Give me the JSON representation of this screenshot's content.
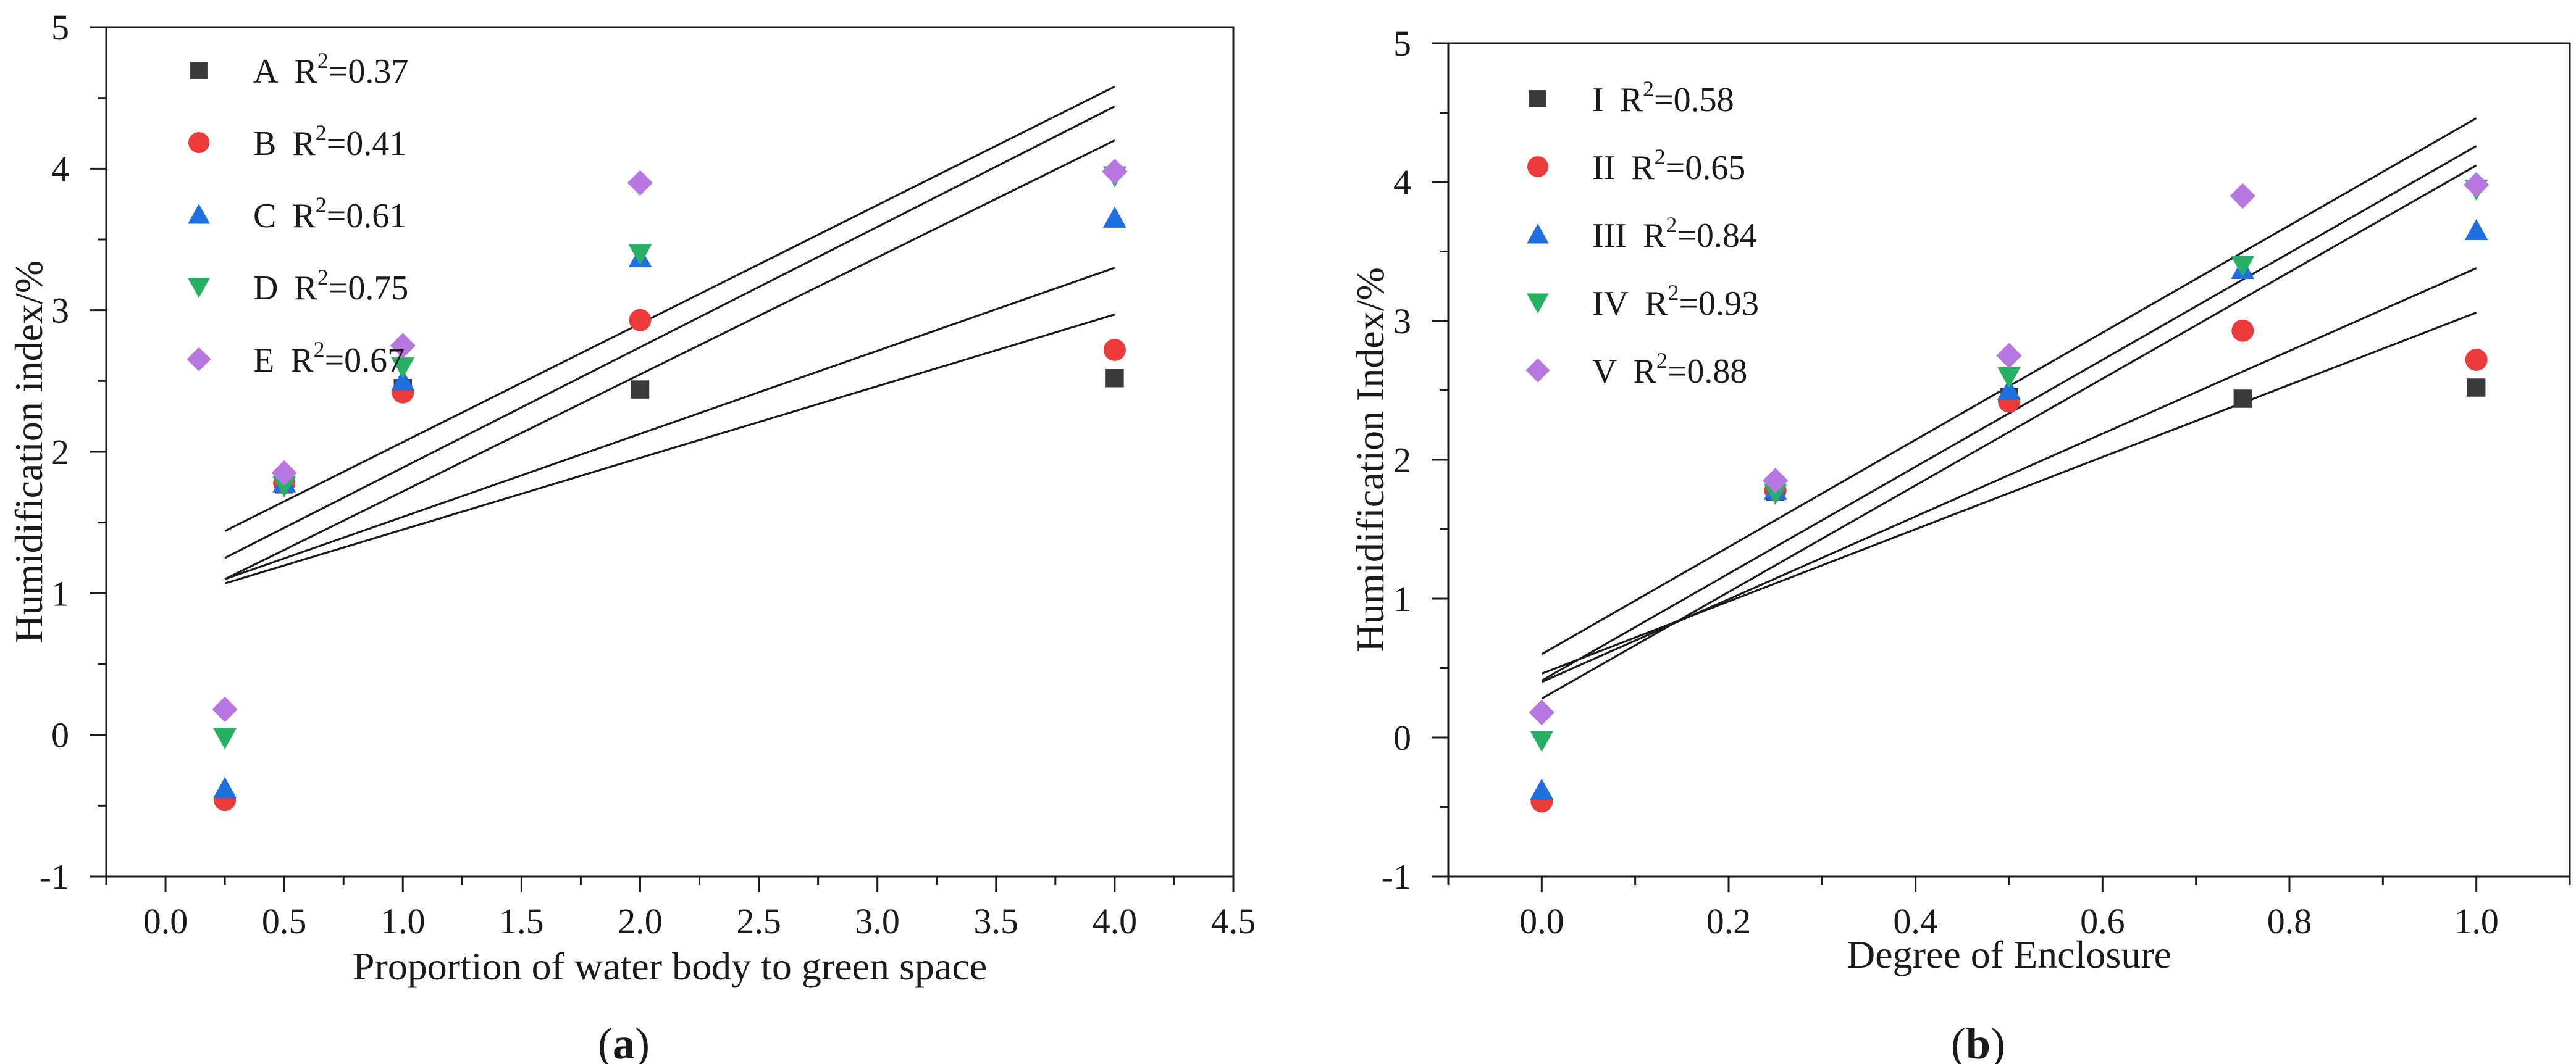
{
  "chart_data": [
    {
      "id": "a",
      "type": "scatter",
      "caption": "a",
      "xlabel": "Proportion of water body to green space",
      "ylabel": "Humidification index/%",
      "xlim": [
        -0.25,
        4.5
      ],
      "ylim": [
        -1,
        5
      ],
      "xticks": [
        0.0,
        0.5,
        1.0,
        1.5,
        2.0,
        2.5,
        3.0,
        3.5,
        4.0,
        4.5
      ],
      "xtick_labels": [
        "0.0",
        "0.5",
        "1.0",
        "1.5",
        "2.0",
        "2.5",
        "3.0",
        "3.5",
        "4.0",
        "4.5"
      ],
      "yticks": [
        -1,
        0,
        1,
        2,
        3,
        4,
        5
      ],
      "ytick_labels": [
        "-1",
        "0",
        "1",
        "2",
        "3",
        "4",
        "5"
      ],
      "series": [
        {
          "name": "A",
          "r2_label": "0.37",
          "marker": "square",
          "color": "#3a3a3a",
          "x": [
            0.5,
            1.0,
            2.0,
            4.0
          ],
          "y": [
            1.77,
            2.45,
            2.44,
            2.52
          ],
          "fit": {
            "x": [
              0.25,
              4.0
            ],
            "y": [
              1.07,
              2.97
            ]
          }
        },
        {
          "name": "B",
          "r2_label": "0.41",
          "marker": "circle",
          "color": "#ee3a3a",
          "x": [
            0.25,
            0.5,
            1.0,
            2.0,
            4.0
          ],
          "y": [
            -0.46,
            1.78,
            2.42,
            2.93,
            2.72
          ],
          "fit": {
            "x": [
              0.25,
              4.0
            ],
            "y": [
              1.1,
              3.3
            ]
          }
        },
        {
          "name": "C",
          "r2_label": "0.61",
          "marker": "triangle-up",
          "color": "#1f6fe0",
          "x": [
            0.25,
            0.5,
            1.0,
            2.0,
            4.0
          ],
          "y": [
            -0.38,
            1.78,
            2.5,
            3.37,
            3.65
          ],
          "fit": {
            "x": [
              0.25,
              4.0
            ],
            "y": [
              1.1,
              4.2
            ]
          }
        },
        {
          "name": "D",
          "r2_label": "0.75",
          "marker": "triangle-down",
          "color": "#26b064",
          "x": [
            0.25,
            0.5,
            1.0,
            2.0,
            4.0
          ],
          "y": [
            -0.02,
            1.76,
            2.6,
            3.4,
            3.95
          ],
          "fit": {
            "x": [
              0.25,
              4.0
            ],
            "y": [
              1.25,
              4.44
            ]
          }
        },
        {
          "name": "E",
          "r2_label": "0.67",
          "marker": "diamond",
          "color": "#b877e0",
          "x": [
            0.25,
            0.5,
            1.0,
            2.0,
            4.0
          ],
          "y": [
            0.18,
            1.85,
            2.75,
            3.9,
            3.98
          ],
          "fit": {
            "x": [
              0.25,
              4.0
            ],
            "y": [
              1.44,
              4.58
            ]
          }
        }
      ]
    },
    {
      "id": "b",
      "type": "scatter",
      "caption": "b",
      "xlabel": "Degree of Enclosure",
      "ylabel": "Humidification Index/%",
      "xlim": [
        -0.1,
        1.1
      ],
      "ylim": [
        -1,
        5
      ],
      "xticks": [
        0.0,
        0.2,
        0.4,
        0.6,
        0.8,
        1.0
      ],
      "xtick_labels": [
        "0.0",
        "0.2",
        "0.4",
        "0.6",
        "0.8",
        "1.0"
      ],
      "yticks": [
        -1,
        0,
        1,
        2,
        3,
        4,
        5
      ],
      "ytick_labels": [
        "-1",
        "0",
        "1",
        "2",
        "3",
        "4",
        "5"
      ],
      "series": [
        {
          "name": "I",
          "r2_label": "0.58",
          "marker": "square",
          "color": "#3a3a3a",
          "x": [
            0.25,
            0.5,
            0.75,
            1.0
          ],
          "y": [
            1.77,
            2.45,
            2.44,
            2.52
          ],
          "fit": {
            "x": [
              0.0,
              1.0
            ],
            "y": [
              0.46,
              3.06
            ]
          }
        },
        {
          "name": "II",
          "r2_label": "0.65",
          "marker": "circle",
          "color": "#ee3a3a",
          "x": [
            0.0,
            0.25,
            0.5,
            0.75,
            1.0
          ],
          "y": [
            -0.46,
            1.78,
            2.42,
            2.93,
            2.72
          ],
          "fit": {
            "x": [
              0.0,
              1.0
            ],
            "y": [
              0.4,
              3.38
            ]
          }
        },
        {
          "name": "III",
          "r2_label": "0.84",
          "marker": "triangle-up",
          "color": "#1f6fe0",
          "x": [
            0.0,
            0.25,
            0.5,
            0.75,
            1.0
          ],
          "y": [
            -0.38,
            1.78,
            2.5,
            3.37,
            3.65
          ],
          "fit": {
            "x": [
              0.0,
              1.0
            ],
            "y": [
              0.28,
              4.12
            ]
          }
        },
        {
          "name": "IV",
          "r2_label": "0.93",
          "marker": "triangle-down",
          "color": "#26b064",
          "x": [
            0.0,
            0.25,
            0.5,
            0.75,
            1.0
          ],
          "y": [
            -0.02,
            1.76,
            2.6,
            3.4,
            3.95
          ],
          "fit": {
            "x": [
              0.0,
              1.0
            ],
            "y": [
              0.41,
              4.26
            ]
          }
        },
        {
          "name": "V",
          "r2_label": "0.88",
          "marker": "diamond",
          "color": "#b877e0",
          "x": [
            0.0,
            0.25,
            0.5,
            0.75,
            1.0
          ],
          "y": [
            0.18,
            1.85,
            2.75,
            3.9,
            3.98
          ],
          "fit": {
            "x": [
              0.0,
              1.0
            ],
            "y": [
              0.6,
              4.46
            ]
          }
        }
      ]
    }
  ]
}
